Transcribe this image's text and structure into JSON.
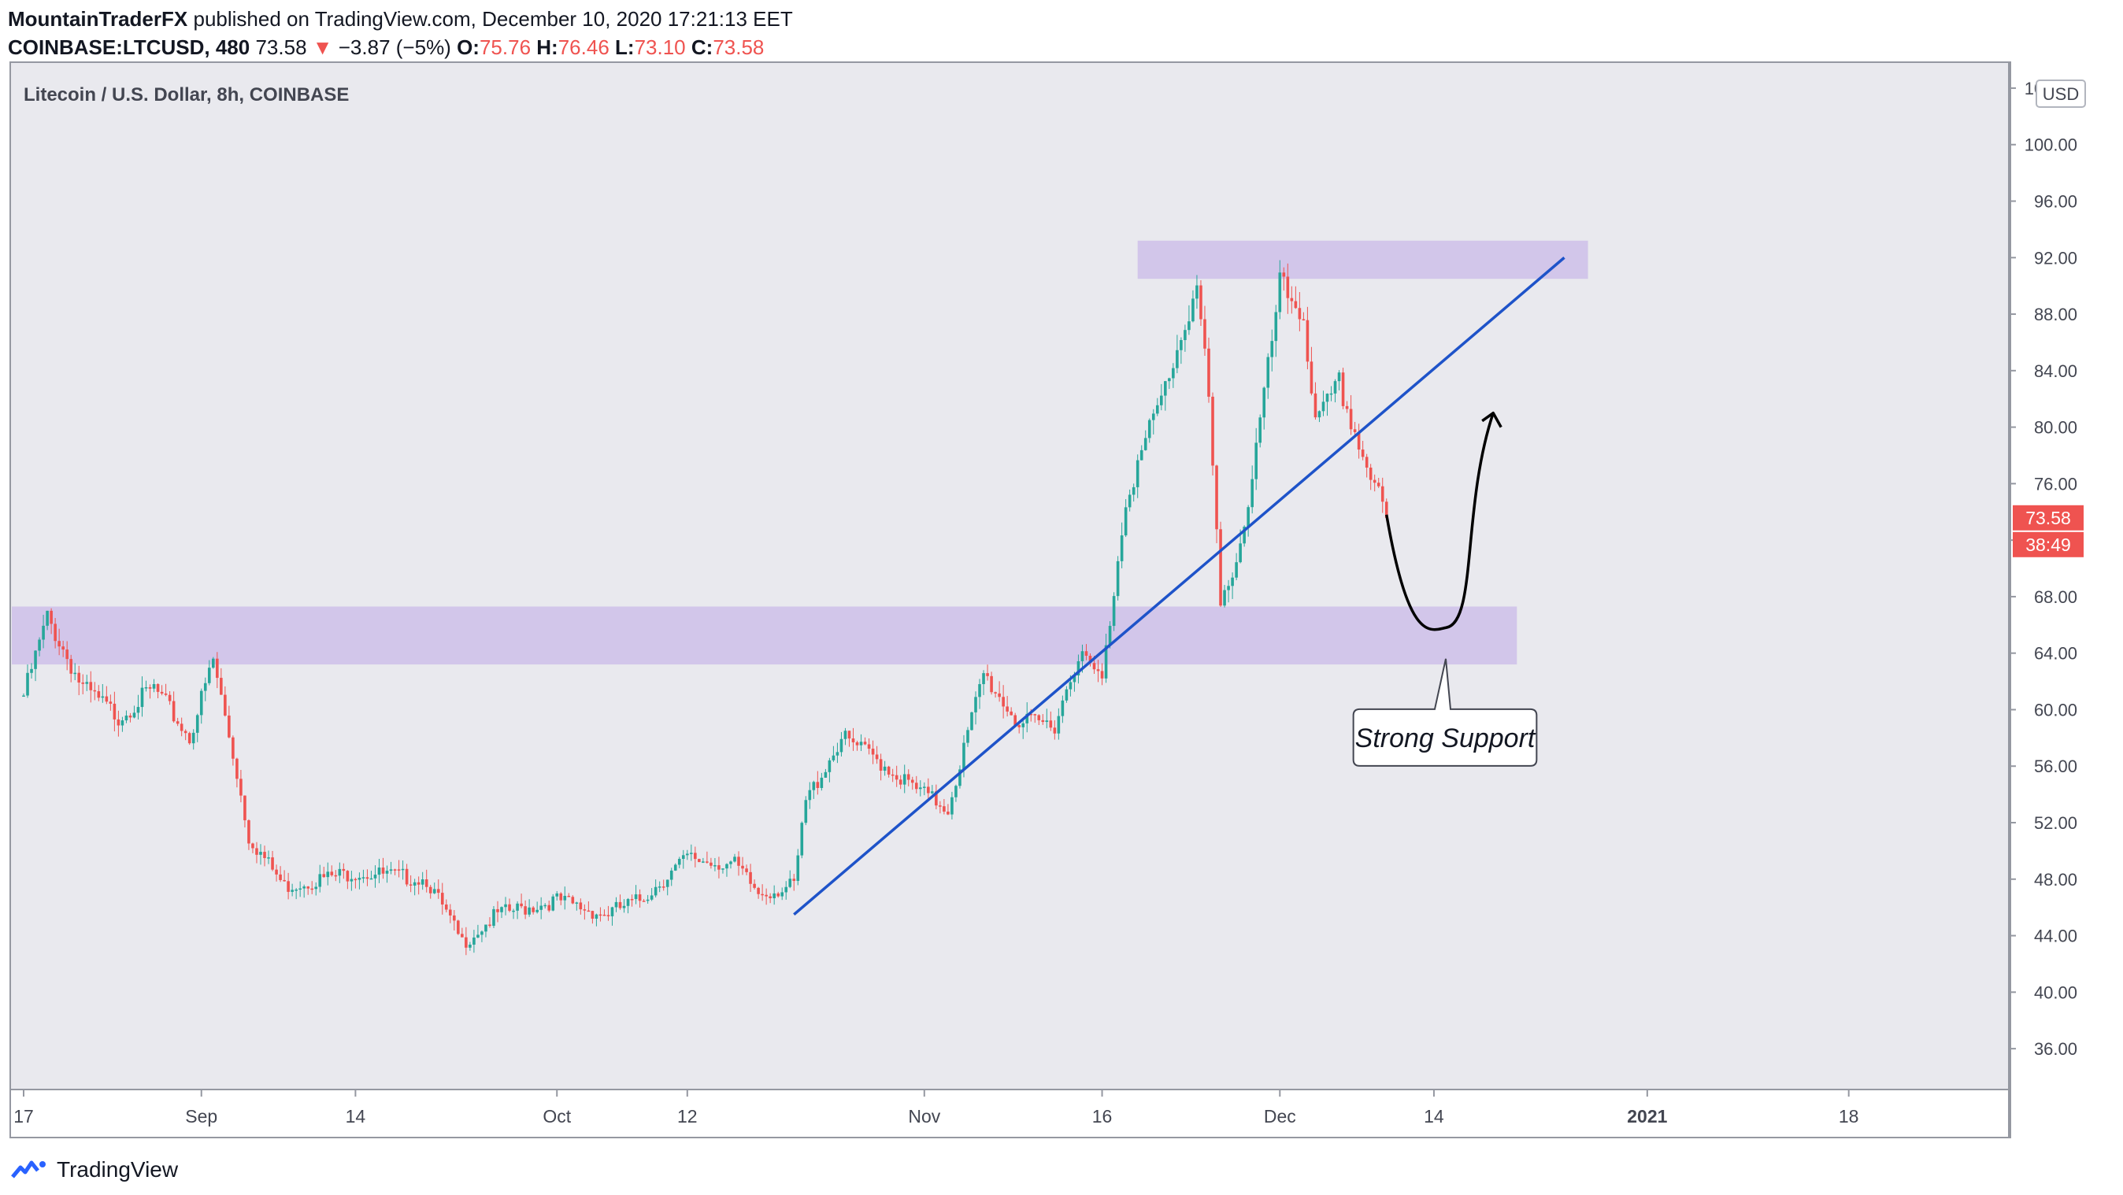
{
  "header": {
    "publisher": "MountainTraderFX",
    "published_text": "published on TradingView.com, December 10, 2020 17:21:13 EET",
    "symbol": "COINBASE:LTCUSD, 480",
    "last": "73.58",
    "change_arrow": "▼",
    "change": "−3.87 (−5%)",
    "open_label": "O:",
    "open": "75.76",
    "high_label": "H:",
    "high": "76.46",
    "low_label": "L:",
    "low": "73.10",
    "close_label": "C:",
    "close": "73.58"
  },
  "pane_title": "Litecoin / U.S. Dollar, 8h, COINBASE",
  "currency": "USD",
  "price_tag": "73.58",
  "countdown_tag": "38:49",
  "annotation": "Strong Support",
  "footer": {
    "brand": "TradingView",
    "icon": "tradingview-logo-icon"
  },
  "colors": {
    "up": "#26a69a",
    "down": "#ef5350",
    "zone": "#d1c4e9",
    "trendline": "#1e53c9",
    "tag": "#ef5350",
    "bg": "#e9e9ee"
  },
  "chart_data": {
    "type": "candlestick",
    "title": "Litecoin / U.S. Dollar, 8h, COINBASE",
    "y_unit": "USD",
    "ylim": [
      34.0,
      105.0
    ],
    "y_ticks": [
      "104.00",
      "100.00",
      "96.00",
      "92.00",
      "88.00",
      "84.00",
      "80.00",
      "76.00",
      "72.00",
      "68.00",
      "64.00",
      "60.00",
      "56.00",
      "52.00",
      "48.00",
      "44.00",
      "40.00",
      "36.00"
    ],
    "x_ticks": [
      "17",
      "Sep",
      "14",
      "Oct",
      "12",
      "Nov",
      "16",
      "Dec",
      "14",
      "2021",
      "18"
    ],
    "x_tick_dates": [
      "2020-08-17",
      "2020-09-01",
      "2020-09-14",
      "2020-10-01",
      "2020-10-12",
      "2020-11-01",
      "2020-11-16",
      "2020-12-01",
      "2020-12-14",
      "2021-01-01",
      "2021-01-18"
    ],
    "grid": false,
    "price_path": [
      [
        "2020-08-17",
        61.0
      ],
      [
        "2020-08-19",
        66.5
      ],
      [
        "2020-08-22",
        61.5
      ],
      [
        "2020-08-25",
        59.5
      ],
      [
        "2020-08-28",
        61.5
      ],
      [
        "2020-08-31",
        58.0
      ],
      [
        "2020-09-02",
        63.5
      ],
      [
        "2020-09-04",
        55.5
      ],
      [
        "2020-09-05",
        51.0
      ],
      [
        "2020-09-08",
        47.5
      ],
      [
        "2020-09-14",
        48.5
      ],
      [
        "2020-09-20",
        48.0
      ],
      [
        "2020-09-23",
        43.5
      ],
      [
        "2020-09-26",
        45.5
      ],
      [
        "2020-10-01",
        46.5
      ],
      [
        "2020-10-05",
        45.5
      ],
      [
        "2020-10-08",
        46.5
      ],
      [
        "2020-10-12",
        49.5
      ],
      [
        "2020-10-16",
        49.0
      ],
      [
        "2020-10-18",
        47.0
      ],
      [
        "2020-10-21",
        47.5
      ],
      [
        "2020-10-22",
        53.5
      ],
      [
        "2020-10-25",
        58.0
      ],
      [
        "2020-10-28",
        56.5
      ],
      [
        "2020-10-31",
        54.5
      ],
      [
        "2020-11-03",
        53.0
      ],
      [
        "2020-11-06",
        62.5
      ],
      [
        "2020-11-09",
        59.0
      ],
      [
        "2020-11-12",
        59.0
      ],
      [
        "2020-11-14",
        64.0
      ],
      [
        "2020-11-16",
        62.0
      ],
      [
        "2020-11-18",
        75.0
      ],
      [
        "2020-11-21",
        82.0
      ],
      [
        "2020-11-24",
        90.0
      ],
      [
        "2020-11-25",
        82.0
      ],
      [
        "2020-11-26",
        67.0
      ],
      [
        "2020-11-28",
        73.0
      ],
      [
        "2020-11-30",
        84.0
      ],
      [
        "2020-12-01",
        90.0
      ],
      [
        "2020-12-03",
        88.0
      ],
      [
        "2020-12-04",
        80.0
      ],
      [
        "2020-12-06",
        83.0
      ],
      [
        "2020-12-08",
        78.0
      ],
      [
        "2020-12-10",
        73.58
      ]
    ],
    "zones": [
      {
        "name": "resistance-zone",
        "from": 90.5,
        "to": 93.2,
        "start": "2020-11-19",
        "end": "2020-12-27"
      },
      {
        "name": "support-zone",
        "from": 63.2,
        "to": 67.3,
        "start": "2020-08-17",
        "end": "2020-12-21"
      }
    ],
    "trendline": {
      "start": [
        "2020-10-21",
        45.5
      ],
      "end": [
        "2020-12-25",
        92.0
      ]
    },
    "projection": {
      "start": [
        "2020-12-10",
        73.8
      ],
      "bottom": [
        "2020-12-15",
        65.8
      ],
      "end": [
        "2020-12-19",
        81.0
      ]
    },
    "last_price": 73.58
  }
}
